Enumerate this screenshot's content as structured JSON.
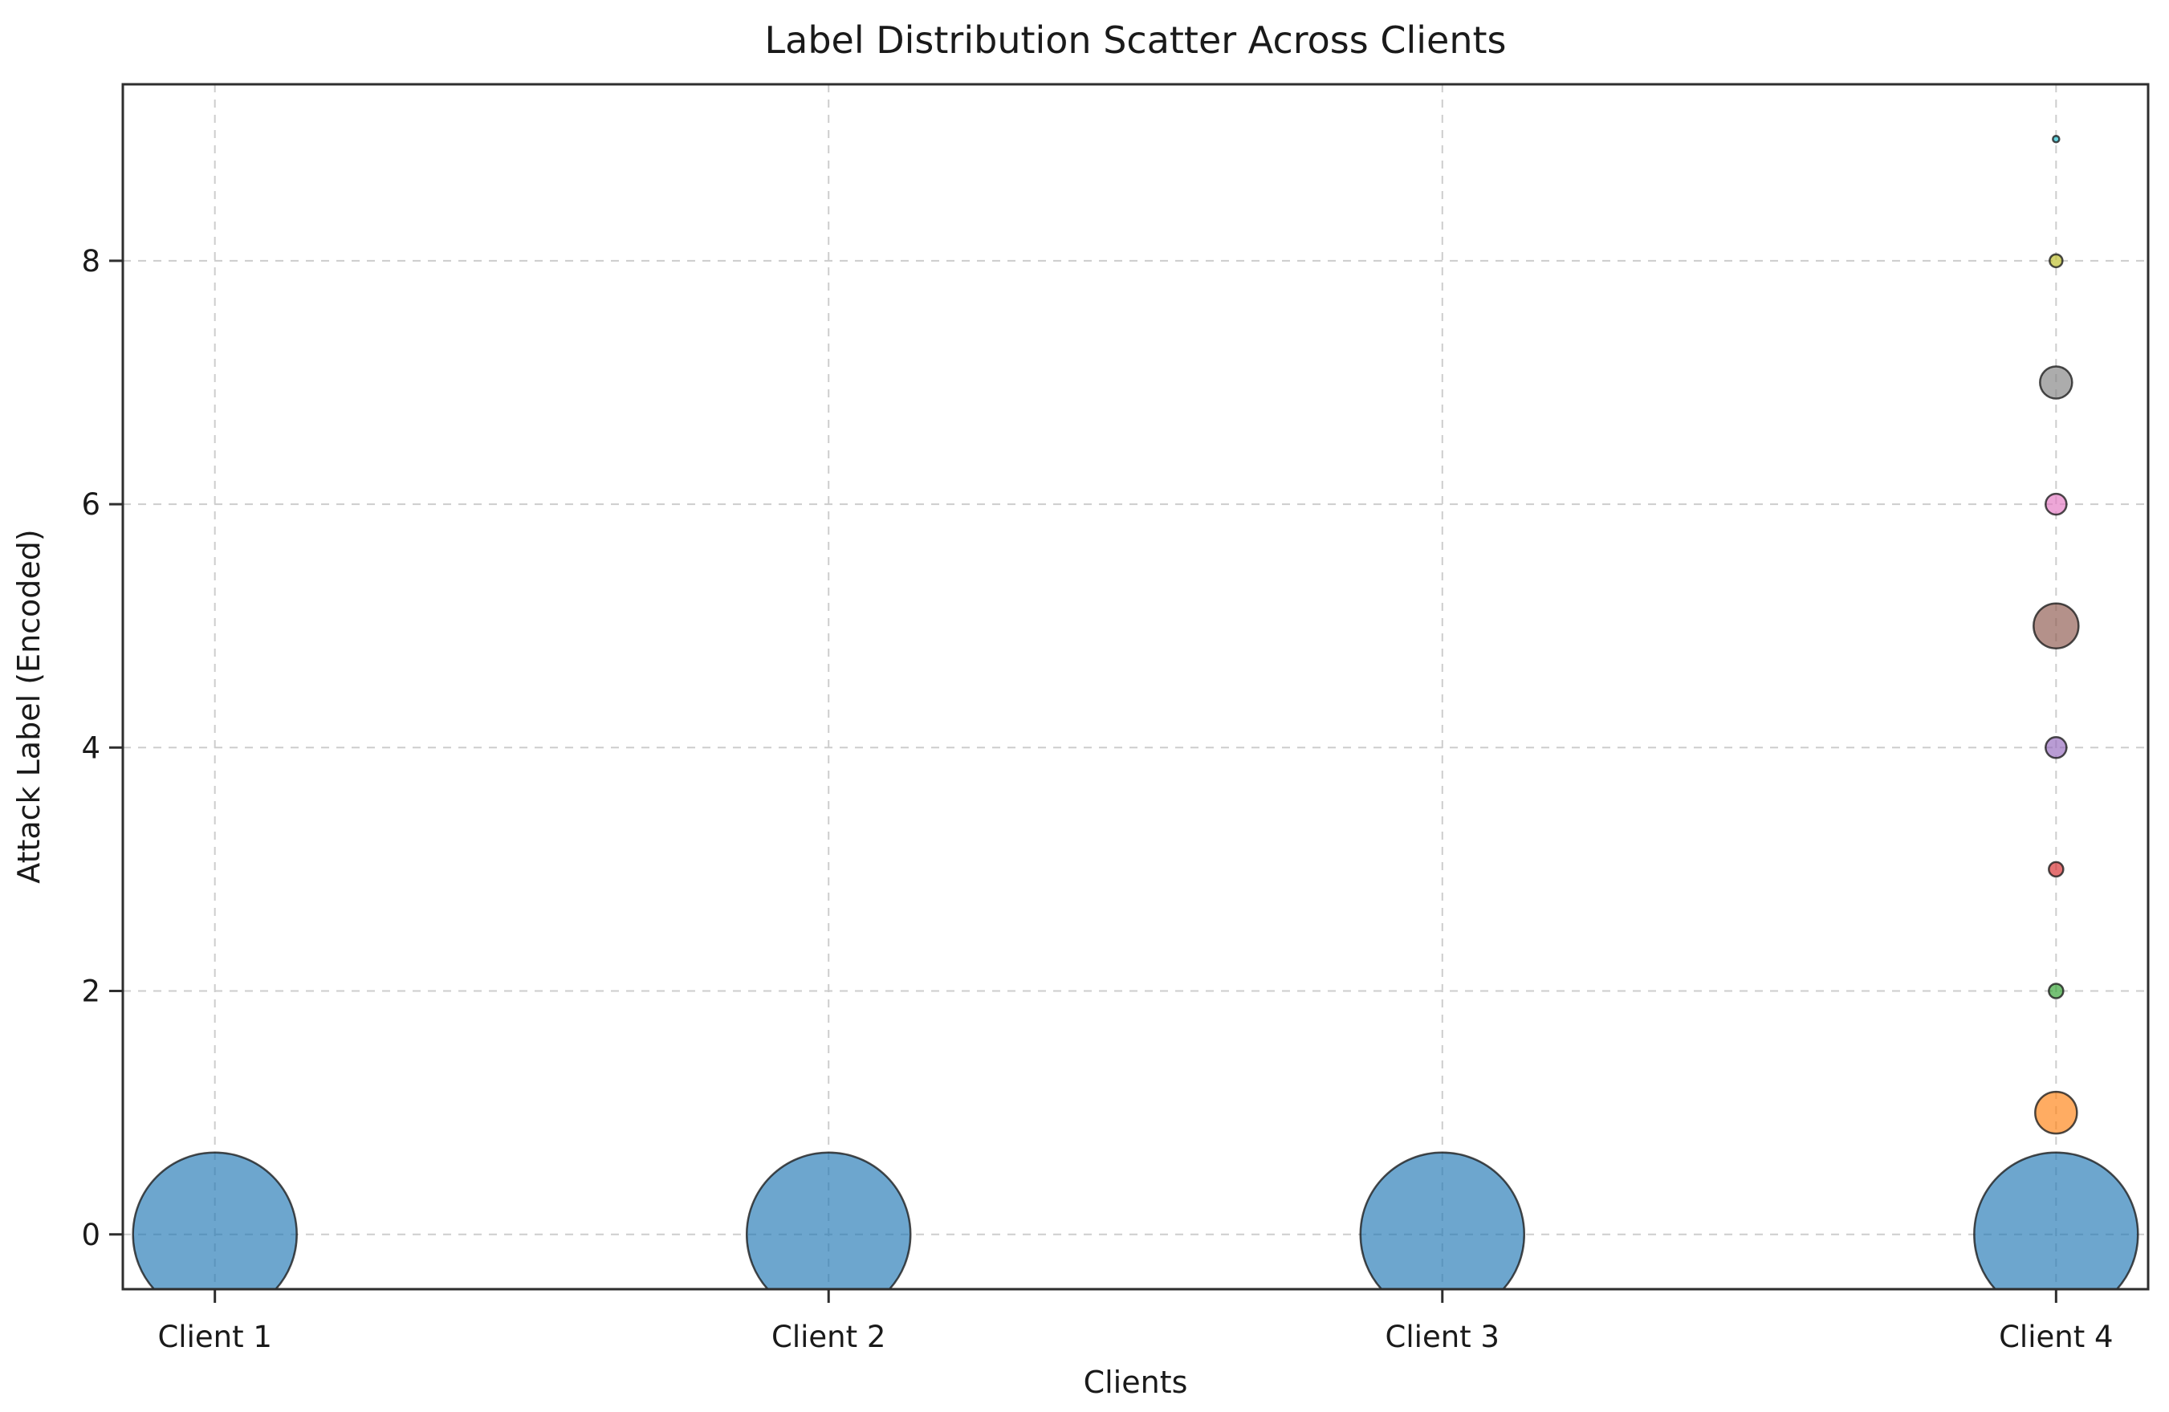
{
  "chart_data": {
    "type": "scatter",
    "title": "Label Distribution Scatter Across Clients",
    "xlabel": "Clients",
    "ylabel": "Attack Label (Encoded)",
    "x_categories": [
      "Client 1",
      "Client 2",
      "Client 3",
      "Client 4"
    ],
    "y_ticks": [
      0,
      2,
      4,
      6,
      8
    ],
    "xlim": [
      -0.15,
      3.15
    ],
    "ylim": [
      -0.45,
      9.45
    ],
    "grid": {
      "on": true,
      "style": "dashed",
      "color": "#cdcdcd"
    },
    "legend": "none",
    "points": [
      {
        "client": "Client 1",
        "client_index": 0,
        "label": 0,
        "radius_px": 102,
        "color": "#1f77b4"
      },
      {
        "client": "Client 2",
        "client_index": 1,
        "label": 0,
        "radius_px": 102,
        "color": "#1f77b4"
      },
      {
        "client": "Client 3",
        "client_index": 2,
        "label": 0,
        "radius_px": 102,
        "color": "#1f77b4"
      },
      {
        "client": "Client 4",
        "client_index": 3,
        "label": 0,
        "radius_px": 102,
        "color": "#1f77b4"
      },
      {
        "client": "Client 4",
        "client_index": 3,
        "label": 1,
        "radius_px": 26,
        "color": "#ff7f0e"
      },
      {
        "client": "Client 4",
        "client_index": 3,
        "label": 2,
        "radius_px": 9,
        "color": "#2ca02c"
      },
      {
        "client": "Client 4",
        "client_index": 3,
        "label": 3,
        "radius_px": 9,
        "color": "#d62728"
      },
      {
        "client": "Client 4",
        "client_index": 3,
        "label": 4,
        "radius_px": 13,
        "color": "#9467bd"
      },
      {
        "client": "Client 4",
        "client_index": 3,
        "label": 5,
        "radius_px": 28,
        "color": "#8c564b"
      },
      {
        "client": "Client 4",
        "client_index": 3,
        "label": 6,
        "radius_px": 13,
        "color": "#e377c2"
      },
      {
        "client": "Client 4",
        "client_index": 3,
        "label": 7,
        "radius_px": 20,
        "color": "#7f7f7f"
      },
      {
        "client": "Client 4",
        "client_index": 3,
        "label": 8,
        "radius_px": 8,
        "color": "#bcbd22"
      },
      {
        "client": "Client 4",
        "client_index": 3,
        "label": 9,
        "radius_px": 4,
        "color": "#17becf"
      }
    ],
    "style": {
      "background": "#ffffff",
      "fill_opacity": 0.65,
      "edge_color": "#1a1a1a",
      "edge_opacity": 0.78,
      "spine_color": "#2e2e2e",
      "text_color": "#1a1a1a"
    }
  }
}
